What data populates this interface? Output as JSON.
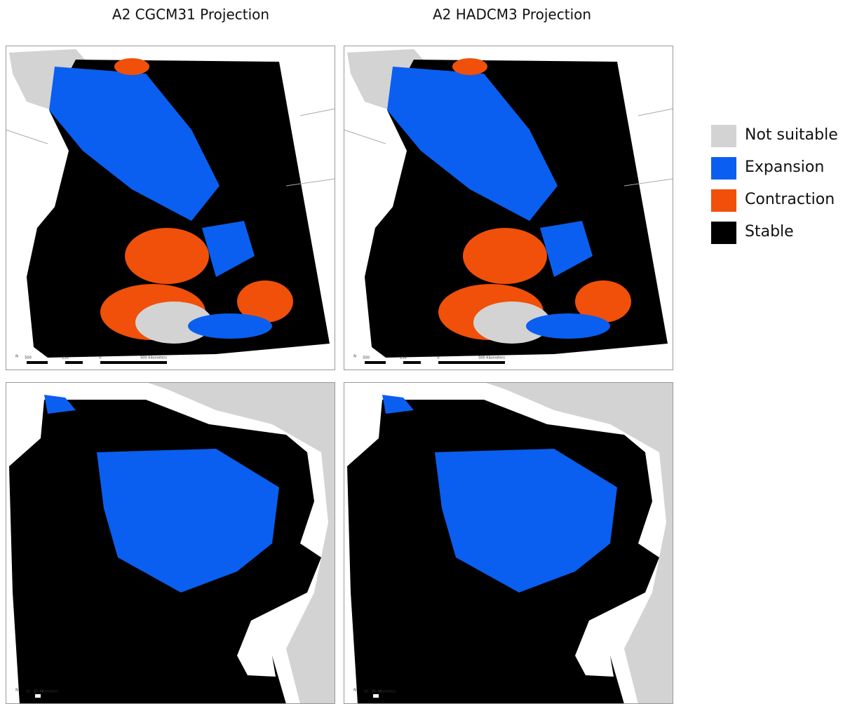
{
  "titles": [
    "A2 CGCM31 Projection",
    "A2 HADCM3 Projection"
  ],
  "legend": [
    {
      "label": "Not suitable",
      "color": "#d3d3d3"
    },
    {
      "label": "Expansion",
      "color": "#0a5ff0"
    },
    {
      "label": "Contraction",
      "color": "#f0500a"
    },
    {
      "label": "Stable",
      "color": "#000000"
    }
  ],
  "north": "N",
  "scale_bars": {
    "regional": [
      "500",
      "250",
      "0",
      "500 Kilometers"
    ],
    "local": [
      "10",
      "5",
      "0",
      "10 Kilometers"
    ]
  }
}
